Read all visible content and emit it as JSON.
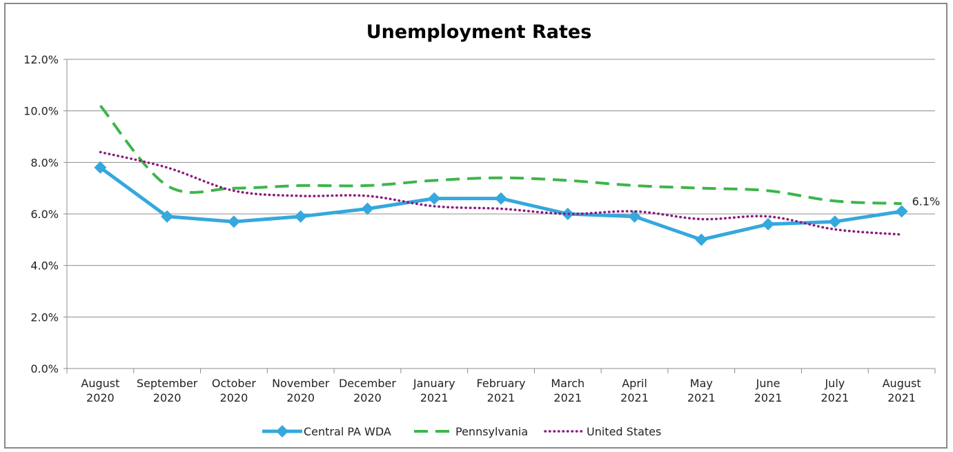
{
  "chart_data": {
    "type": "line",
    "title": "Unemployment Rates",
    "xlabel": "",
    "ylabel": "",
    "ylim": [
      0,
      12
    ],
    "yticks": [
      "0.0%",
      "2.0%",
      "4.0%",
      "6.0%",
      "8.0%",
      "10.0%",
      "12.0%"
    ],
    "categories": [
      [
        "August",
        "2020"
      ],
      [
        "September",
        "2020"
      ],
      [
        "October",
        "2020"
      ],
      [
        "November",
        "2020"
      ],
      [
        "December",
        "2020"
      ],
      [
        "January",
        "2021"
      ],
      [
        "February",
        "2021"
      ],
      [
        "March",
        "2021"
      ],
      [
        "April",
        "2021"
      ],
      [
        "May",
        "2021"
      ],
      [
        "June",
        "2021"
      ],
      [
        "July",
        "2021"
      ],
      [
        "August",
        "2021"
      ]
    ],
    "series": [
      {
        "name": "Central PA WDA",
        "style": "solid-diamond",
        "color": "#35A8DD",
        "values": [
          7.8,
          5.9,
          5.7,
          5.9,
          6.2,
          6.6,
          6.6,
          6.0,
          5.9,
          5.0,
          5.6,
          5.7,
          6.1
        ]
      },
      {
        "name": "Pennsylvania",
        "style": "dashed",
        "color": "#3DB54A",
        "values": [
          10.2,
          7.1,
          7.0,
          7.1,
          7.1,
          7.3,
          7.4,
          7.3,
          7.1,
          7.0,
          6.9,
          6.5,
          6.4
        ]
      },
      {
        "name": "United States",
        "style": "dotted",
        "color": "#8B1A7E",
        "values": [
          8.4,
          7.8,
          6.9,
          6.7,
          6.7,
          6.3,
          6.2,
          6.0,
          6.1,
          5.8,
          5.9,
          5.4,
          5.2
        ]
      }
    ],
    "annotations": [
      {
        "series": 0,
        "index": 12,
        "text": "6.1%"
      }
    ],
    "grid": true,
    "legend": "bottom"
  }
}
